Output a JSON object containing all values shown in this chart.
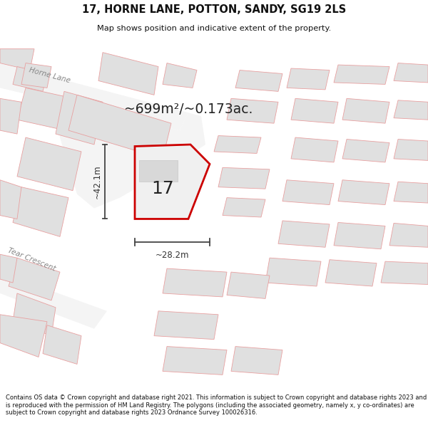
{
  "title_line1": "17, HORNE LANE, POTTON, SANDY, SG19 2LS",
  "title_line2": "Map shows position and indicative extent of the property.",
  "area_label": "~699m²/~0.173ac.",
  "property_number": "17",
  "dim_vertical": "~42.1m",
  "dim_horizontal": "~28.2m",
  "footer_text": "Contains OS data © Crown copyright and database right 2021. This information is subject to Crown copyright and database rights 2023 and is reproduced with the permission of HM Land Registry. The polygons (including the associated geometry, namely x, y co-ordinates) are subject to Crown copyright and database rights 2023 Ordnance Survey 100026316.",
  "map_bg": "#f8f8f8",
  "building_fill": "#e0e0e0",
  "building_edge": "#e8a0a0",
  "parcel_edge": "#e8a0a0",
  "road_fill": "#f8f8f8",
  "highlight_edge": "#cc0000",
  "highlight_fill": "#f0f0f0",
  "road_label_color": "#888888",
  "title_color": "#111111",
  "dim_color": "#333333",
  "area_color": "#222222",
  "footer_color": "#111111",
  "title_fontsize": 10.5,
  "subtitle_fontsize": 8.2,
  "area_fontsize": 13.5,
  "dim_fontsize": 8.5,
  "road_label_fontsize": 7.5,
  "property_fontsize": 18,
  "footer_fontsize": 6.0
}
